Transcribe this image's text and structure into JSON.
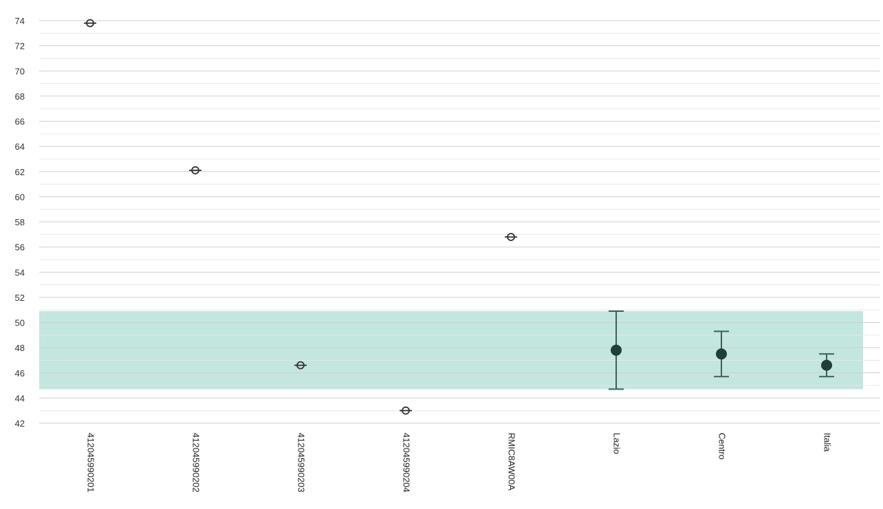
{
  "chart_data": {
    "type": "scatter",
    "title": "",
    "xlabel": "",
    "ylabel": "",
    "ylim": [
      42,
      74
    ],
    "y_ticks": [
      42,
      44,
      46,
      48,
      50,
      52,
      54,
      56,
      58,
      60,
      62,
      64,
      66,
      68,
      70,
      72,
      74
    ],
    "y_tick_labels": [
      "42",
      "44",
      "46",
      "48",
      "50",
      "52",
      "54",
      "56",
      "58",
      "60",
      "62",
      "64",
      "66",
      "68",
      "70",
      "72",
      "74"
    ],
    "grid": true,
    "categories": [
      "412045990201",
      "412045990202",
      "412045990203",
      "412045990204",
      "RMIC8AW00A",
      "Lazio",
      "Centro",
      "Italia"
    ],
    "values": [
      73.8,
      62.1,
      46.6,
      43.0,
      56.8,
      47.8,
      47.5,
      46.6
    ],
    "error_low": [
      null,
      null,
      null,
      null,
      null,
      44.7,
      45.7,
      45.7
    ],
    "error_high": [
      null,
      null,
      null,
      null,
      null,
      50.9,
      49.3,
      47.5
    ],
    "marker_style": [
      "hollow",
      "hollow",
      "hollow",
      "hollow",
      "hollow",
      "filled",
      "filled",
      "filled"
    ],
    "reference_band": [
      44.7,
      50.9
    ],
    "colors": {
      "band": "#c3e6df",
      "filled_marker": "#1f3f37",
      "error_bar": "#3d5f57",
      "hollow_stroke": "#333333",
      "grid": "#d6d6d6"
    }
  }
}
